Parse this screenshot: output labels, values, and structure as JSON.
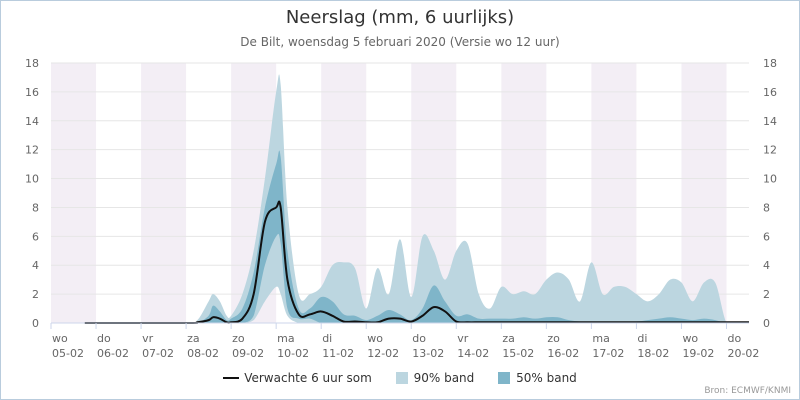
{
  "chart_data": {
    "type": "area",
    "title": "Neerslag (mm, 6 uurlijks)",
    "subtitle": "De Bilt, woensdag 5 februari 2020 (Versie wo 12 uur)",
    "ylim": [
      0,
      18
    ],
    "y_ticks": [
      0,
      2,
      4,
      6,
      8,
      10,
      12,
      14,
      16,
      18
    ],
    "x_ticks": [
      {
        "day": "wo",
        "date": "05-02"
      },
      {
        "day": "do",
        "date": "06-02"
      },
      {
        "day": "vr",
        "date": "07-02"
      },
      {
        "day": "za",
        "date": "08-02"
      },
      {
        "day": "zo",
        "date": "09-02"
      },
      {
        "day": "ma",
        "date": "10-02"
      },
      {
        "day": "di",
        "date": "11-02"
      },
      {
        "day": "wo",
        "date": "12-02"
      },
      {
        "day": "do",
        "date": "13-02"
      },
      {
        "day": "vr",
        "date": "14-02"
      },
      {
        "day": "za",
        "date": "15-02"
      },
      {
        "day": "zo",
        "date": "16-02"
      },
      {
        "day": "ma",
        "date": "17-02"
      },
      {
        "day": "di",
        "date": "18-02"
      },
      {
        "day": "wo",
        "date": "19-02"
      },
      {
        "day": "do",
        "date": "20-02"
      }
    ],
    "x_unit": "days from 05-02 00:00",
    "x": [
      0.75,
      3.0,
      3.25,
      3.5,
      3.6,
      3.75,
      3.9,
      4.0,
      4.25,
      4.5,
      4.75,
      5.0,
      5.1,
      5.25,
      5.5,
      5.75,
      6.0,
      6.25,
      6.5,
      6.75,
      7.0,
      7.25,
      7.5,
      7.75,
      8.0,
      8.25,
      8.5,
      8.75,
      9.0,
      9.25,
      9.5,
      9.75,
      10.0,
      10.25,
      10.5,
      10.75,
      11.0,
      11.25,
      11.5,
      11.75,
      12.0,
      12.25,
      12.5,
      12.75,
      13.0,
      13.25,
      13.5,
      13.75,
      14.0,
      14.25,
      14.5,
      14.75,
      15.0,
      15.25,
      15.5
    ],
    "series": [
      {
        "name": "90% band",
        "color": "#bcd6e0",
        "low": [
          0,
          0,
          0,
          0,
          0,
          0,
          0,
          0,
          0,
          0.2,
          1.5,
          2.5,
          2.0,
          0.5,
          0,
          0,
          0,
          0,
          0,
          0,
          0,
          0,
          0,
          0,
          0,
          0,
          0,
          0,
          0,
          0,
          0,
          0,
          0,
          0,
          0,
          0,
          0,
          0,
          0,
          0,
          0,
          0,
          0,
          0,
          0,
          0,
          0,
          0,
          0,
          0,
          0,
          0,
          0,
          0,
          0
        ],
        "high": [
          0,
          0,
          0.2,
          1.5,
          2.0,
          1.5,
          0.5,
          0.5,
          2.0,
          5.0,
          10.0,
          16.0,
          16.5,
          8.0,
          2.0,
          2.0,
          2.5,
          4.0,
          4.2,
          3.8,
          1.0,
          3.8,
          2.0,
          5.8,
          1.8,
          6.0,
          5.0,
          3.0,
          5.0,
          5.5,
          2.0,
          1.0,
          2.5,
          2.0,
          2.2,
          2.0,
          3.0,
          3.5,
          3.0,
          1.5,
          4.2,
          2.0,
          2.5,
          2.5,
          2.0,
          1.5,
          2.0,
          3.0,
          2.8,
          1.5,
          2.8,
          2.8,
          0,
          0,
          0
        ]
      },
      {
        "name": "50% band",
        "color": "#7fb5c9",
        "low": [
          0,
          0,
          0,
          0,
          0,
          0,
          0,
          0,
          0,
          0.5,
          4.0,
          6.0,
          5.5,
          1.0,
          0.3,
          0.3,
          0,
          0,
          0,
          0,
          0,
          0,
          0,
          0,
          0,
          0,
          0,
          0,
          0,
          0,
          0,
          0,
          0,
          0,
          0,
          0,
          0,
          0,
          0,
          0,
          0,
          0,
          0,
          0,
          0,
          0,
          0,
          0,
          0,
          0,
          0,
          0,
          0,
          0,
          0
        ],
        "high": [
          0,
          0,
          0,
          0.5,
          1.2,
          0.8,
          0.2,
          0.3,
          1.0,
          3.5,
          8.0,
          11.0,
          11.5,
          5.0,
          1.0,
          1.0,
          1.8,
          1.5,
          0.6,
          0.5,
          0.2,
          0.5,
          0.9,
          0.6,
          0.2,
          1.0,
          2.6,
          1.5,
          0.5,
          0.6,
          0.3,
          0.3,
          0.3,
          0.3,
          0.4,
          0.3,
          0.4,
          0.4,
          0.2,
          0.1,
          0.1,
          0.1,
          0.1,
          0.1,
          0.1,
          0.2,
          0.3,
          0.4,
          0.3,
          0.2,
          0.3,
          0.2,
          0,
          0,
          0
        ]
      },
      {
        "name": "Verwachte 6 uur som",
        "color": "#111111",
        "values": [
          0,
          0,
          0.05,
          0.2,
          0.4,
          0.3,
          0.05,
          0.05,
          0.3,
          2.0,
          7.0,
          8.0,
          8.0,
          3.0,
          0.6,
          0.6,
          0.8,
          0.5,
          0.1,
          0.1,
          0.05,
          0.05,
          0.3,
          0.3,
          0.1,
          0.5,
          1.1,
          0.8,
          0.1,
          0.05,
          0.05,
          0.05,
          0.05,
          0.05,
          0.05,
          0.05,
          0.05,
          0.05,
          0.05,
          0.05,
          0.05,
          0.05,
          0.05,
          0.05,
          0.05,
          0.05,
          0.05,
          0.05,
          0.05,
          0.05,
          0.05,
          0.05,
          0.05,
          0.05,
          0.05
        ]
      }
    ],
    "weekend_shading": [
      [
        0,
        1
      ],
      [
        2,
        3
      ],
      [
        4,
        5
      ],
      [
        6,
        7
      ],
      [
        8,
        9
      ],
      [
        10,
        11
      ],
      [
        12,
        13
      ],
      [
        14,
        15
      ]
    ],
    "legend_position": "bottom-center",
    "grid": true
  },
  "legend": {
    "line_label": "Verwachte 6 uur som",
    "band90_label": "90% band",
    "band50_label": "50% band"
  },
  "credit": "Bron: ECMWF/KNMI",
  "colors": {
    "band90": "#bcd6e0",
    "band50": "#7fb5c9",
    "line": "#111111",
    "shade": "#f3eef5",
    "grid": "#e6e6e6"
  }
}
